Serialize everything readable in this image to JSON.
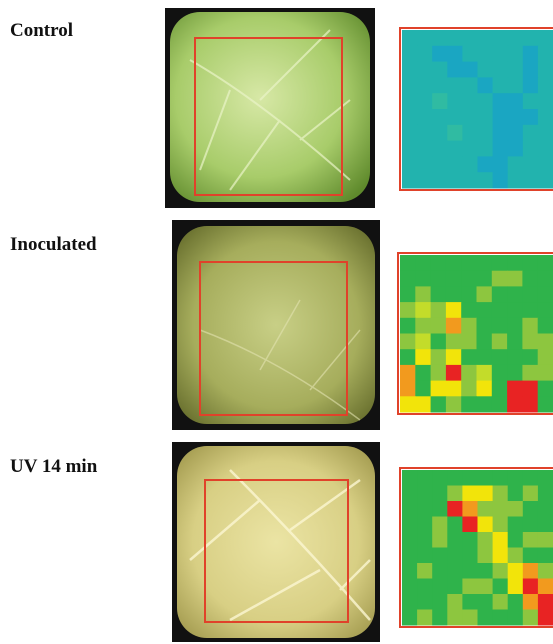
{
  "panels": [
    {
      "label": "Control"
    },
    {
      "label": "Inoculated"
    },
    {
      "label": "UV 14 min"
    }
  ]
}
